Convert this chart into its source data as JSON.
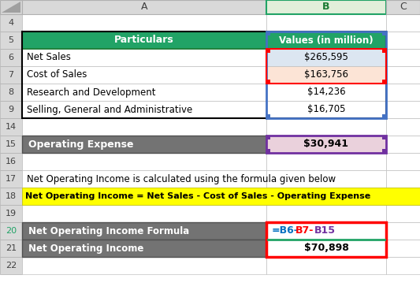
{
  "col_headers": [
    "A",
    "B",
    "C"
  ],
  "row_labels": [
    "4",
    "5",
    "6",
    "7",
    "8",
    "9",
    "14",
    "15",
    "16",
    "17",
    "18",
    "19",
    "20",
    "21",
    "22"
  ],
  "header_row": {
    "particulars": "Particulars",
    "values": "Values (in million)"
  },
  "data_rows": [
    {
      "label": "Net Sales",
      "value": "$265,595"
    },
    {
      "label": "Cost of Sales",
      "value": "$163,756"
    },
    {
      "label": "Research and Development",
      "value": "$14,236"
    },
    {
      "label": "Selling, General and Administrative",
      "value": "$16,705"
    }
  ],
  "operating_expense": {
    "label": "Operating Expense",
    "value": "$30,941"
  },
  "formula_text": "Net Operating Income is calculated using the formula given below",
  "formula_highlight": "Net Operating Income = Net Sales - Cost of Sales - Operating Expense",
  "formula_cell_label": "Net Operating Income Formula",
  "result_label": "Net Operating Income",
  "result_value": "$70,898",
  "colors": {
    "green_header": "#21a366",
    "green_dark": "#1a7a32",
    "gray_bg": "#737373",
    "gray_row": "#d9d9d9",
    "light_blue_bg": "#dce6f1",
    "light_red_bg": "#fce4d6",
    "light_purple_bg": "#ead1dc",
    "yellow_bg": "#ffff00",
    "white": "#ffffff",
    "black": "#000000",
    "blue": "#4472c4",
    "formula_blue": "#0070c0",
    "formula_red": "#ff0000",
    "formula_purple": "#7030a0",
    "border_blue": "#4472c4",
    "border_red": "#ff0000",
    "border_purple": "#7030a0",
    "col_header_bg": "#d9d9d9",
    "col_header_B_bg": "#e2efda",
    "col_header_B_border": "#21a366",
    "row_num_20_color": "#21a366",
    "cell_border": "#c0c0c0"
  }
}
